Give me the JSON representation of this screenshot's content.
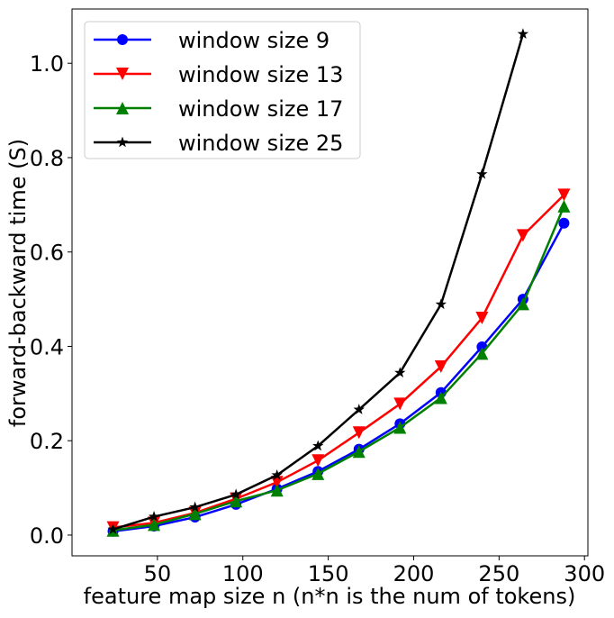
{
  "chart_data": {
    "type": "line",
    "xlabel": "feature map size n (n*n is the num of tokens)",
    "ylabel": "forward-backward time (S)",
    "x": [
      24,
      48,
      72,
      96,
      120,
      144,
      168,
      192,
      216,
      240,
      264,
      288
    ],
    "series": [
      {
        "name": "window size 9",
        "color": "#0000ff",
        "marker": "circle",
        "values": [
          0.008,
          0.019,
          0.038,
          0.065,
          0.098,
          0.135,
          0.182,
          0.236,
          0.302,
          0.399,
          0.5,
          0.661
        ]
      },
      {
        "name": "window size 13",
        "color": "#ff0000",
        "marker": "triangle-down",
        "values": [
          0.016,
          0.026,
          0.047,
          0.077,
          0.112,
          0.158,
          0.217,
          0.278,
          0.357,
          0.46,
          0.635,
          0.721
        ]
      },
      {
        "name": "window size 17",
        "color": "#008000",
        "marker": "triangle-up",
        "values": [
          0.01,
          0.022,
          0.045,
          0.072,
          0.095,
          0.13,
          0.177,
          0.228,
          0.291,
          0.385,
          0.49,
          0.697
        ]
      },
      {
        "name": "window size 25",
        "color": "#000000",
        "marker": "star",
        "values": [
          0.012,
          0.039,
          0.059,
          0.086,
          0.127,
          0.189,
          0.266,
          0.344,
          0.489,
          0.765,
          1.062,
          null
        ]
      }
    ],
    "xlim": [
      0,
      302
    ],
    "ylim": [
      -0.044,
      1.115
    ],
    "xticks": [
      50,
      100,
      150,
      200,
      250,
      300
    ],
    "yticks": [
      {
        "value": 0,
        "label": "0.0"
      },
      {
        "value": 0.2,
        "label": "0.2"
      },
      {
        "value": 0.4,
        "label": "0.4"
      },
      {
        "value": 0.6,
        "label": "0.6"
      },
      {
        "value": 0.8,
        "label": "0.8"
      },
      {
        "value": 1.0,
        "label": "1.0"
      }
    ],
    "legend": "upper left",
    "grid": false
  }
}
